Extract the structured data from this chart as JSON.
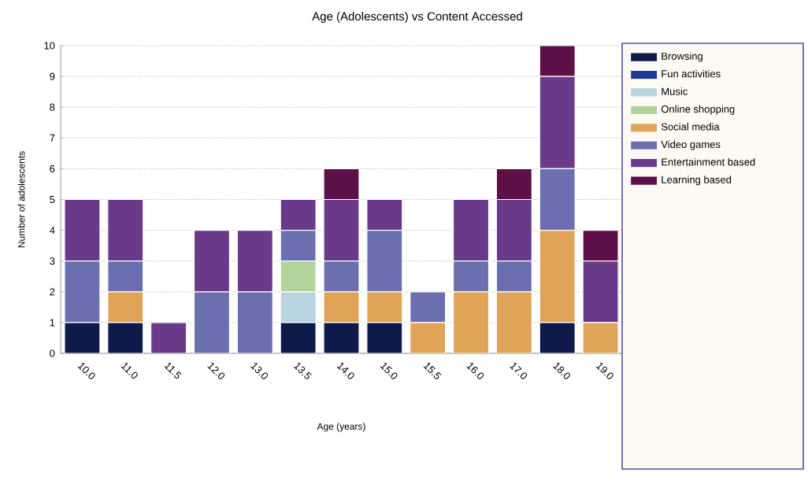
{
  "chart_data": {
    "type": "bar",
    "stacked": true,
    "title": "Age (Adolescents) vs Content Accessed",
    "xlabel": "Age (years)",
    "ylabel": "Number of adolescents",
    "categories": [
      "10.0",
      "11.0",
      "11.5",
      "12.0",
      "13.0",
      "13.5",
      "14.0",
      "15.0",
      "15.5",
      "16.0",
      "17.0",
      "18.0",
      "19.0"
    ],
    "series": [
      {
        "name": "Browsing",
        "color": "#0d1a4a",
        "values": [
          1,
          1,
          0,
          0,
          0,
          1,
          1,
          1,
          0,
          0,
          0,
          1,
          0
        ]
      },
      {
        "name": "Fun activities",
        "color": "#1f3a93",
        "values": [
          0,
          0,
          0,
          0,
          0,
          0,
          0,
          0,
          0,
          0,
          0,
          0,
          0
        ]
      },
      {
        "name": "Music",
        "color": "#b7d4e0",
        "values": [
          0,
          0,
          0,
          0,
          0,
          1,
          0,
          0,
          0,
          0,
          0,
          0,
          0
        ]
      },
      {
        "name": "Online shopping",
        "color": "#b3d39c",
        "values": [
          0,
          0,
          0,
          0,
          0,
          1,
          0,
          0,
          0,
          0,
          0,
          0,
          0
        ]
      },
      {
        "name": "Social media",
        "color": "#e0a458",
        "values": [
          0,
          1,
          0,
          0,
          0,
          0,
          1,
          1,
          1,
          2,
          2,
          3,
          1
        ]
      },
      {
        "name": "Video games",
        "color": "#6b6fb0",
        "values": [
          2,
          1,
          0,
          2,
          2,
          1,
          1,
          2,
          1,
          1,
          1,
          2,
          0
        ]
      },
      {
        "name": "Entertainment based",
        "color": "#6a3a8a",
        "values": [
          2,
          2,
          1,
          2,
          2,
          1,
          2,
          1,
          0,
          2,
          2,
          3,
          2
        ]
      },
      {
        "name": "Learning based",
        "color": "#5c1047",
        "values": [
          0,
          0,
          0,
          0,
          0,
          0,
          1,
          0,
          0,
          0,
          1,
          1,
          1
        ]
      }
    ],
    "ylim": [
      0,
      10
    ],
    "yticks": [
      0,
      1,
      2,
      3,
      4,
      5,
      6,
      7,
      8,
      9,
      10
    ],
    "grid": "y",
    "legend": "right"
  }
}
